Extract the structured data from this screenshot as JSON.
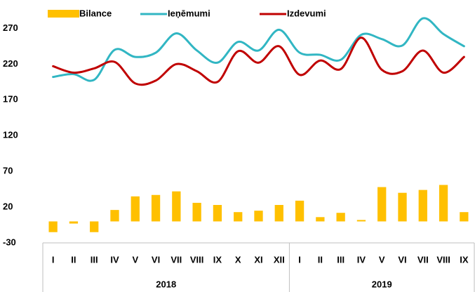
{
  "chart_data": {
    "type": "bar",
    "groups": [
      {
        "name": "2018",
        "categories": [
          "I",
          "II",
          "III",
          "IV",
          "V",
          "VI",
          "VII",
          "VIII",
          "IX",
          "X",
          "XI",
          "XII"
        ]
      },
      {
        "name": "2019",
        "categories": [
          "I",
          "II",
          "III",
          "IV",
          "V",
          "VI",
          "VII",
          "VIII",
          "IX"
        ]
      }
    ],
    "series": [
      {
        "name": "Bilance",
        "type": "bar",
        "color": "#FFC000",
        "values": [
          -15,
          -3,
          -15,
          16,
          35,
          37,
          42,
          26,
          23,
          13,
          15,
          23,
          29,
          6,
          12,
          2,
          48,
          40,
          44,
          51,
          13
        ]
      },
      {
        "name": "Ieņēmumi",
        "type": "line",
        "color": "#31B6C3",
        "values": [
          202,
          206,
          198,
          240,
          230,
          236,
          263,
          239,
          222,
          251,
          239,
          268,
          236,
          233,
          226,
          261,
          255,
          246,
          284,
          262,
          245
        ]
      },
      {
        "name": "Izdevumi",
        "type": "line",
        "color": "#C00000",
        "values": [
          217,
          208,
          214,
          223,
          193,
          197,
          220,
          210,
          195,
          238,
          222,
          245,
          205,
          225,
          213,
          257,
          212,
          210,
          239,
          208,
          230
        ]
      }
    ],
    "ylim": [
      -30,
      290
    ],
    "yticks": [
      -30,
      20,
      70,
      120,
      170,
      220,
      270
    ],
    "legend": "top",
    "grid": false
  }
}
